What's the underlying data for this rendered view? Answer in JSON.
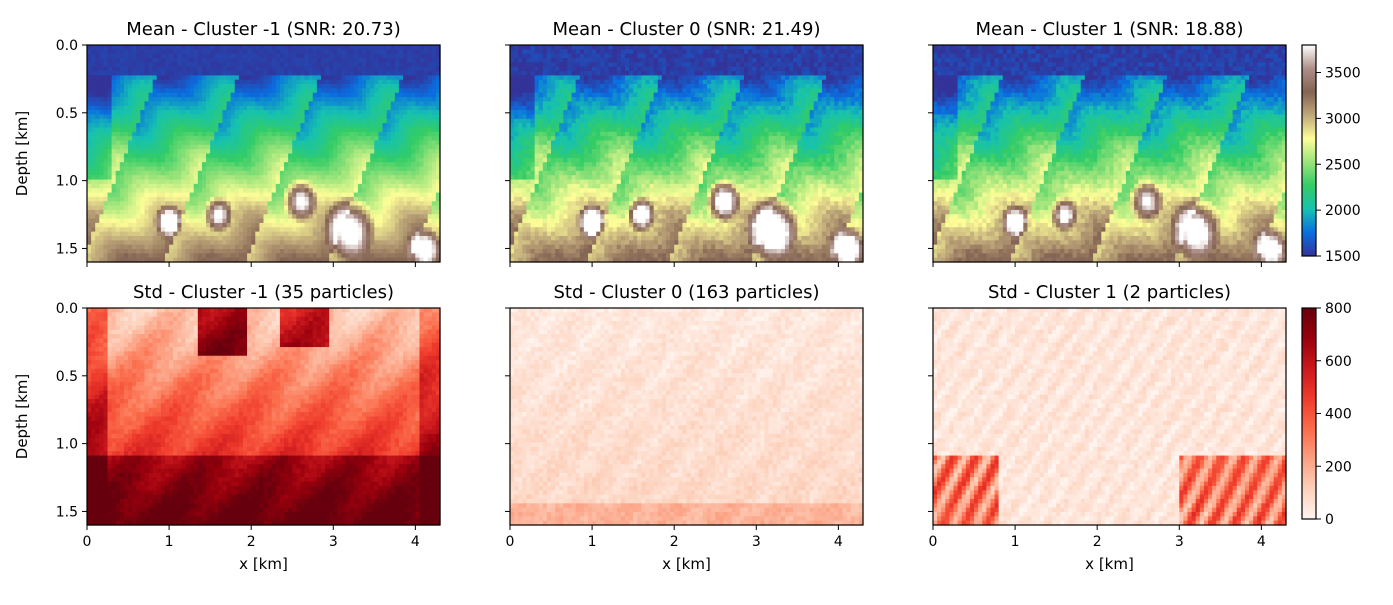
{
  "chart_data": {
    "type": "heatmap",
    "panels": [
      {
        "row": 0,
        "col": 0,
        "title": "Mean - Cluster -1 (SNR: 20.73)",
        "kind": "mean",
        "cluster": -1
      },
      {
        "row": 0,
        "col": 1,
        "title": "Mean - Cluster 0 (SNR: 21.49)",
        "kind": "mean",
        "cluster": 0
      },
      {
        "row": 0,
        "col": 2,
        "title": "Mean - Cluster 1 (SNR: 18.88)",
        "kind": "mean",
        "cluster": 1
      },
      {
        "row": 1,
        "col": 0,
        "title": "Std - Cluster -1 (35 particles)",
        "kind": "std",
        "cluster": -1
      },
      {
        "row": 1,
        "col": 1,
        "title": "Std - Cluster 0 (163 particles)",
        "kind": "std",
        "cluster": 0
      },
      {
        "row": 1,
        "col": 2,
        "title": "Std - Cluster 1 (2 particles)",
        "kind": "std",
        "cluster": 1
      }
    ],
    "xlabel": "x [km]",
    "ylabel": "Depth [km]",
    "xlim": [
      0,
      4.3
    ],
    "ylim": [
      1.6,
      0.0
    ],
    "x_ticks": [
      "0",
      "1",
      "2",
      "3",
      "4"
    ],
    "x_tick_values": [
      0,
      1,
      2,
      3,
      4
    ],
    "y_ticks": [
      "0.0",
      "0.5",
      "1.0",
      "1.5"
    ],
    "y_tick_values": [
      0.0,
      0.5,
      1.0,
      1.5
    ],
    "colorbars": [
      {
        "label_row": "mean",
        "colormap": "terrain",
        "range": [
          1500,
          3800
        ],
        "ticks": [
          "1500",
          "2000",
          "2500",
          "3000",
          "3500"
        ],
        "tick_values": [
          1500,
          2000,
          2500,
          3000,
          3500
        ]
      },
      {
        "label_row": "std",
        "colormap": "Reds",
        "range": [
          0,
          800
        ],
        "ticks": [
          "0",
          "200",
          "400",
          "600",
          "800"
        ],
        "tick_values": [
          0,
          200,
          400,
          600,
          800
        ]
      }
    ],
    "colors": {
      "terrain": [
        "#333399",
        "#0a6ee0",
        "#16c2b0",
        "#33cc66",
        "#99e37a",
        "#fefe98",
        "#bfa87a",
        "#846453",
        "#ad8f88",
        "#ffffff"
      ],
      "reds": [
        "#fff5f0",
        "#fdd1bc",
        "#fca082",
        "#fb6b4a",
        "#ef3b2c",
        "#cb181d",
        "#99000d",
        "#67000d"
      ]
    }
  }
}
